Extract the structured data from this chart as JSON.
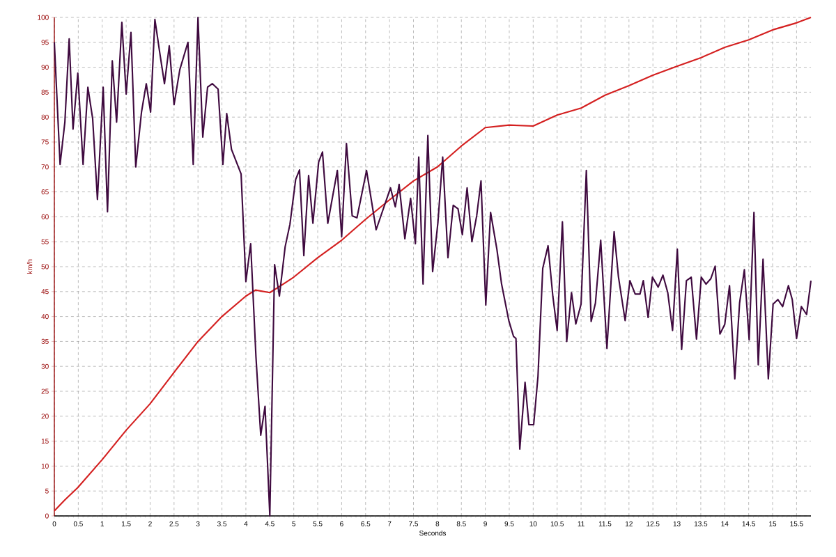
{
  "chart_data": {
    "type": "line",
    "xlabel": "Seconds",
    "ylabel": "km/h",
    "xlim": [
      0,
      15.8
    ],
    "ylim": [
      0,
      100
    ],
    "xticks": [
      0,
      0.5,
      1,
      1.5,
      2,
      2.5,
      3,
      3.5,
      4,
      4.5,
      5,
      5.5,
      6,
      6.5,
      7,
      7.5,
      8,
      8.5,
      9,
      9.5,
      10,
      10.5,
      11,
      11.5,
      12,
      12.5,
      13,
      13.5,
      14,
      14.5,
      15,
      15.5
    ],
    "yticks": [
      0,
      5,
      10,
      15,
      20,
      25,
      30,
      35,
      40,
      45,
      50,
      55,
      60,
      65,
      70,
      75,
      80,
      85,
      90,
      95,
      100
    ],
    "grid": true,
    "line_style": "solid",
    "marker": "none",
    "series": [
      {
        "color": "#d42020",
        "x": [
          0,
          0.22,
          0.49,
          1.0,
          1.5,
          2.0,
          2.5,
          3.0,
          3.5,
          4.0,
          4.2,
          4.5,
          4.7,
          5.0,
          5.5,
          6.0,
          6.5,
          7.0,
          7.5,
          8.0,
          8.5,
          9.0,
          9.5,
          10.0,
          10.5,
          11.0,
          11.5,
          12.0,
          12.5,
          13.0,
          13.5,
          14.0,
          14.5,
          15.0,
          15.5,
          15.8
        ],
        "values": [
          1,
          3.2,
          5.7,
          11.3,
          17.2,
          22.5,
          28.8,
          35,
          40,
          44.1,
          45.3,
          44.8,
          46,
          47.9,
          51.8,
          55.3,
          59.5,
          63.4,
          67.2,
          70,
          74.2,
          77.9,
          78.4,
          78.2,
          80.4,
          81.8,
          84.4,
          86.3,
          88.4,
          90.2,
          91.9,
          94,
          95.5,
          97.5,
          98.9,
          100
        ]
      },
      {
        "color": "#3f0a3f",
        "x": [
          0,
          0.12,
          0.22,
          0.31,
          0.39,
          0.49,
          0.6,
          0.7,
          0.8,
          0.9,
          1.02,
          1.11,
          1.21,
          1.3,
          1.41,
          1.5,
          1.6,
          1.7,
          1.82,
          1.92,
          2.01,
          2.1,
          2.2,
          2.3,
          2.4,
          2.5,
          2.62,
          2.79,
          2.9,
          3.0,
          3.1,
          3.2,
          3.3,
          3.42,
          3.52,
          3.6,
          3.7,
          3.9,
          4.0,
          4.1,
          4.21,
          4.31,
          4.4,
          4.5,
          4.6,
          4.7,
          4.82,
          4.92,
          5.04,
          5.12,
          5.21,
          5.31,
          5.4,
          5.52,
          5.6,
          5.71,
          5.91,
          6.0,
          6.1,
          6.22,
          6.32,
          6.52,
          6.72,
          7.02,
          7.12,
          7.2,
          7.32,
          7.44,
          7.54,
          7.61,
          7.7,
          7.8,
          7.9,
          8.01,
          8.11,
          8.22,
          8.33,
          8.43,
          8.52,
          8.62,
          8.72,
          8.82,
          8.91,
          9.01,
          9.11,
          9.24,
          9.34,
          9.49,
          9.59,
          9.64,
          9.72,
          9.83,
          9.91,
          10.01,
          10.1,
          10.2,
          10.31,
          10.41,
          10.5,
          10.61,
          10.7,
          10.8,
          10.89,
          11.0,
          11.11,
          11.21,
          11.3,
          11.41,
          11.54,
          11.69,
          11.78,
          11.92,
          12.02,
          12.13,
          12.23,
          12.3,
          12.4,
          12.49,
          12.61,
          12.71,
          12.81,
          12.91,
          13.01,
          13.1,
          13.2,
          13.3,
          13.41,
          13.51,
          13.61,
          13.71,
          13.8,
          13.9,
          14.0,
          14.1,
          14.21,
          14.31,
          14.41,
          14.51,
          14.61,
          14.7,
          14.8,
          14.91,
          15.01,
          15.11,
          15.21,
          15.33,
          15.41,
          15.5,
          15.6,
          15.71,
          15.8
        ],
        "values": [
          95,
          70.5,
          79,
          95.7,
          77.6,
          88.8,
          70.5,
          86,
          79.7,
          63.5,
          86,
          61,
          91.3,
          79,
          99,
          84.6,
          97,
          70,
          81,
          86.7,
          81,
          99.6,
          93,
          86.7,
          94.3,
          82.5,
          89.5,
          95,
          70.5,
          100,
          76,
          86,
          86.7,
          85.6,
          70.5,
          80.7,
          73.5,
          68.6,
          47,
          54.6,
          32,
          16.2,
          22,
          0,
          50.4,
          44.1,
          54,
          58.5,
          67.5,
          69.4,
          52.2,
          68.3,
          58.7,
          71,
          73,
          58.7,
          69.3,
          56,
          74.7,
          60.2,
          59.8,
          69.3,
          57.4,
          65.8,
          62,
          66.5,
          55.6,
          63.7,
          54.6,
          72,
          46.5,
          76.3,
          49,
          58.8,
          72,
          51.8,
          62.3,
          61.6,
          56.4,
          65.8,
          55,
          60.2,
          67.2,
          42.3,
          60.9,
          53.6,
          46.5,
          39.2,
          36,
          35.6,
          13.4,
          26.8,
          18.3,
          18.3,
          28,
          49.7,
          54.2,
          44.1,
          37.2,
          59,
          35,
          44.8,
          38.5,
          42.5,
          69.3,
          39,
          42.7,
          55.3,
          33.6,
          57,
          48,
          39.2,
          47.2,
          44.5,
          44.5,
          47.2,
          39.8,
          47.9,
          45.9,
          48.3,
          44.8,
          37.2,
          53.5,
          33.4,
          47.2,
          47.9,
          35.5,
          47.9,
          46.5,
          47.6,
          50.1,
          36.5,
          38.4,
          46.2,
          27.5,
          42.7,
          49.4,
          35.3,
          60.9,
          30.3,
          51.5,
          27.5,
          42.5,
          43.4,
          42,
          46.2,
          43.4,
          35.6,
          42,
          40.4,
          47.2
        ]
      }
    ]
  }
}
